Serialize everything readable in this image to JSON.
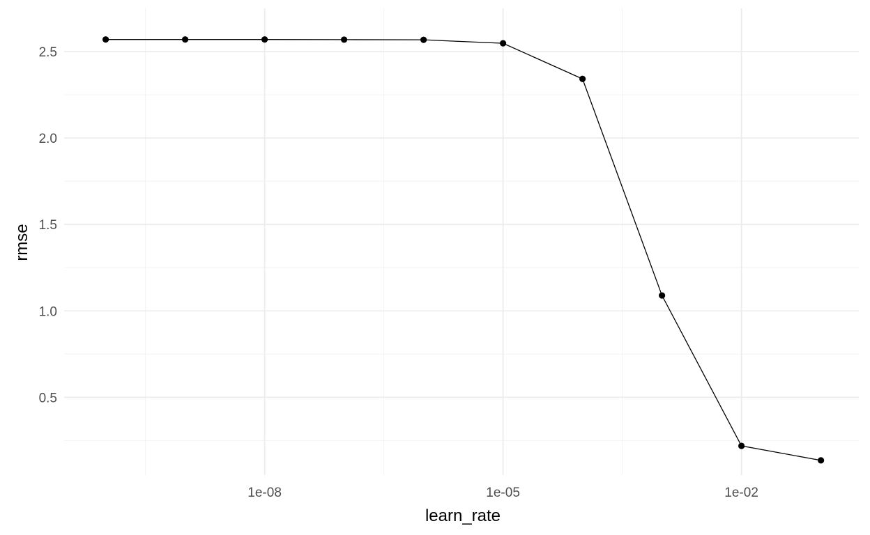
{
  "chart_data": {
    "type": "line",
    "title": "",
    "xlabel": "learn_rate",
    "ylabel": "rmse",
    "x_scale": "log10",
    "xlim": [
      3e-11,
      0.3
    ],
    "ylim": [
      0.05,
      2.75
    ],
    "x_ticks": [
      1e-08,
      1e-05,
      0.01
    ],
    "x_tick_labels": [
      "1e-08",
      "1e-05",
      "1e-02"
    ],
    "y_ticks": [
      0.5,
      1.0,
      1.5,
      2.0,
      2.5
    ],
    "y_tick_labels": [
      "0.5",
      "1.0",
      "1.5",
      "2.0",
      "2.5"
    ],
    "grid": true,
    "legend": "none",
    "series": [
      {
        "x": [
          1e-10,
          1e-09,
          1e-08,
          1e-07,
          1e-06,
          1e-05,
          0.0001,
          0.001,
          0.01,
          0.1
        ],
        "y": [
          2.57,
          2.57,
          2.57,
          2.569,
          2.568,
          2.548,
          2.342,
          1.089,
          0.219,
          0.135
        ]
      }
    ],
    "colors": {
      "line": "#000000",
      "point": "#000000",
      "grid_major": "#ebebeb",
      "grid_minor": "#f2f2f2",
      "tick_text": "#4d4d4d"
    }
  }
}
